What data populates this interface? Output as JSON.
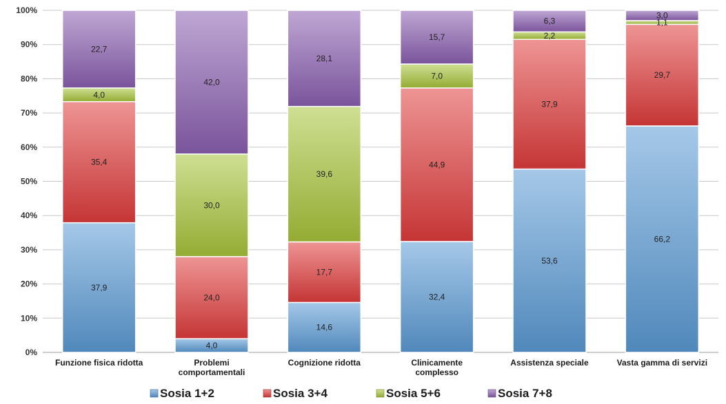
{
  "chart_data": {
    "type": "bar",
    "stacked": true,
    "percent_stacked": true,
    "title": "",
    "xlabel": "",
    "ylabel": "",
    "ylim": [
      0,
      100
    ],
    "yticks": [
      "0%",
      "10%",
      "20%",
      "30%",
      "40%",
      "50%",
      "60%",
      "70%",
      "80%",
      "90%",
      "100%"
    ],
    "categories": [
      [
        "Funzione fisica ridotta"
      ],
      [
        "Problemi",
        "comportamentali"
      ],
      [
        "Cognizione ridotta"
      ],
      [
        "Clinicamente",
        "complesso"
      ],
      [
        "Assistenza speciale"
      ],
      [
        "Vasta gamma di servizi"
      ]
    ],
    "series": [
      {
        "name": "Sosia 1+2",
        "color": "#5b9bd5",
        "values": [
          37.9,
          4.0,
          14.6,
          32.4,
          53.6,
          66.2
        ],
        "labels": [
          "37,9",
          "4,0",
          "14,6",
          "32,4",
          "53,6",
          "66,2"
        ]
      },
      {
        "name": "Sosia 3+4",
        "color": "#e03c3c",
        "values": [
          35.4,
          24.0,
          17.7,
          44.9,
          37.9,
          29.7
        ],
        "labels": [
          "35,4",
          "24,0",
          "17,7",
          "44,9",
          "37,9",
          "29,7"
        ]
      },
      {
        "name": "Sosia 5+6",
        "color": "#a8c43a",
        "values": [
          4.0,
          30.0,
          39.6,
          7.0,
          2.2,
          1.1
        ],
        "labels": [
          "4,0",
          "30,0",
          "39,6",
          "7,0",
          "2,2",
          "1,1"
        ]
      },
      {
        "name": "Sosia 7+8",
        "color": "#8b5fb0",
        "values": [
          22.7,
          42.0,
          28.1,
          15.7,
          6.3,
          3.0
        ],
        "labels": [
          "22,7",
          "42,0",
          "28,1",
          "15,7",
          "6,3",
          "3,0"
        ]
      }
    ],
    "legend_position": "bottom",
    "grid": true
  }
}
